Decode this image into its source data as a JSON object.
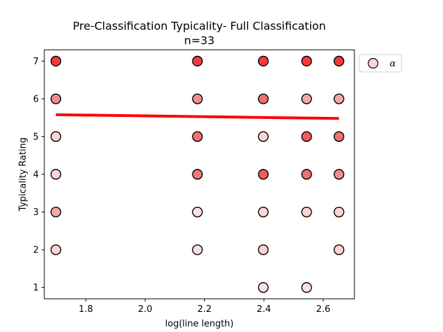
{
  "chart_data": {
    "type": "scatter",
    "title": "Pre-Classification Typicality- Full Classification",
    "subtitle": "n=33",
    "xlabel": "log(line length)",
    "ylabel": "Typicality Rating",
    "xlim": [
      1.66,
      2.705
    ],
    "ylim": [
      0.7,
      7.3
    ],
    "xticks": [
      1.8,
      2.0,
      2.2,
      2.4,
      2.6
    ],
    "xtick_labels": [
      "1.8",
      "2.0",
      "2.2",
      "2.4",
      "2.6"
    ],
    "yticks": [
      1,
      2,
      3,
      4,
      5,
      6,
      7
    ],
    "ytick_labels": [
      "1",
      "2",
      "3",
      "4",
      "5",
      "6",
      "7"
    ],
    "grid": false,
    "legend": {
      "placement": "upper-right-outside",
      "entries": [
        "α"
      ]
    },
    "series": [
      {
        "name": "α",
        "marker": "circle",
        "edge_color": "#000000",
        "points": [
          {
            "x": 1.699,
            "y": 7,
            "color": "#f53b3b"
          },
          {
            "x": 1.699,
            "y": 6,
            "color": "#f08c8c"
          },
          {
            "x": 1.699,
            "y": 5,
            "color": "#fcd4d4"
          },
          {
            "x": 1.699,
            "y": 4,
            "color": "#fcd4d4"
          },
          {
            "x": 1.699,
            "y": 3,
            "color": "#f5a8a8"
          },
          {
            "x": 1.699,
            "y": 2,
            "color": "#fcd4d4"
          },
          {
            "x": 2.176,
            "y": 7,
            "color": "#f53b3b"
          },
          {
            "x": 2.176,
            "y": 6,
            "color": "#f08c8c"
          },
          {
            "x": 2.176,
            "y": 5,
            "color": "#f07070"
          },
          {
            "x": 2.176,
            "y": 4,
            "color": "#f07a7a"
          },
          {
            "x": 2.176,
            "y": 3,
            "color": "#fde2e2"
          },
          {
            "x": 2.176,
            "y": 2,
            "color": "#fde2e2"
          },
          {
            "x": 2.398,
            "y": 7,
            "color": "#f53b3b"
          },
          {
            "x": 2.398,
            "y": 6,
            "color": "#f07070"
          },
          {
            "x": 2.398,
            "y": 5,
            "color": "#fcd4d4"
          },
          {
            "x": 2.398,
            "y": 4,
            "color": "#f05a5a"
          },
          {
            "x": 2.398,
            "y": 3,
            "color": "#fcd4d4"
          },
          {
            "x": 2.398,
            "y": 2,
            "color": "#fcd4d4"
          },
          {
            "x": 2.398,
            "y": 1,
            "color": "#fde2e2"
          },
          {
            "x": 2.544,
            "y": 7,
            "color": "#f53b3b"
          },
          {
            "x": 2.544,
            "y": 6,
            "color": "#f5a8a8"
          },
          {
            "x": 2.544,
            "y": 5,
            "color": "#f05a5a"
          },
          {
            "x": 2.544,
            "y": 4,
            "color": "#f07070"
          },
          {
            "x": 2.544,
            "y": 3,
            "color": "#fcd4d4"
          },
          {
            "x": 2.544,
            "y": 1,
            "color": "#fde2e2"
          },
          {
            "x": 2.653,
            "y": 7,
            "color": "#f53b3b"
          },
          {
            "x": 2.653,
            "y": 6,
            "color": "#f5a8a8"
          },
          {
            "x": 2.653,
            "y": 5,
            "color": "#f07070"
          },
          {
            "x": 2.653,
            "y": 4,
            "color": "#f08c8c"
          },
          {
            "x": 2.653,
            "y": 3,
            "color": "#fcd4d4"
          },
          {
            "x": 2.653,
            "y": 2,
            "color": "#fcd4d4"
          }
        ]
      }
    ],
    "trend_line": {
      "color": "#ff0000",
      "x": [
        1.699,
        2.653
      ],
      "y": [
        5.58,
        5.48
      ]
    },
    "legend_marker_color": "#fcd4d4"
  }
}
